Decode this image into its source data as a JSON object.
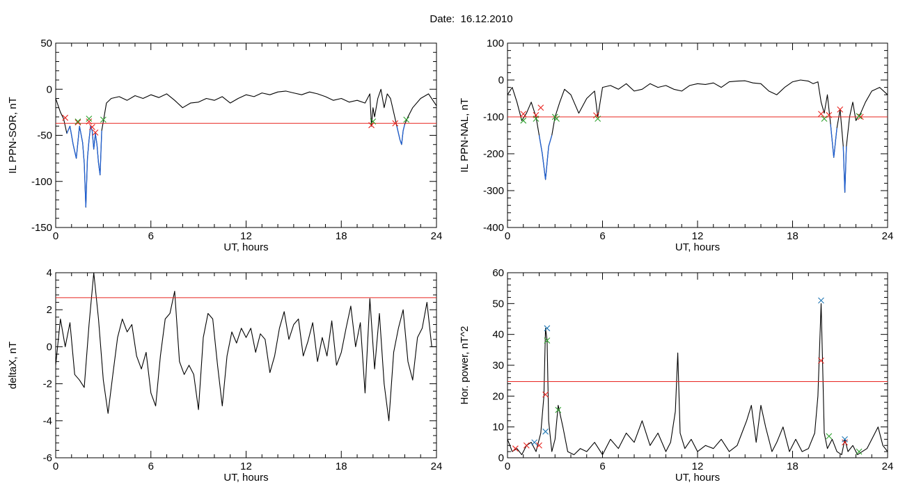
{
  "page": {
    "title": "Date:  16.12.2010"
  },
  "colors": {
    "trace": "#000000",
    "highlight": "#1f5fd0",
    "threshold": "#e8231e",
    "marker_red": "#e8231e",
    "marker_green": "#2ca02c",
    "marker_blue": "#1f77b4"
  },
  "chart_data": [
    {
      "type": "line",
      "xlabel": "UT, hours",
      "ylabel": "IL PPN-SOR, nT",
      "xlim": [
        0,
        24
      ],
      "ylim": [
        -150,
        50
      ],
      "xticks": [
        0,
        6,
        12,
        18,
        24
      ],
      "yticks": [
        -150,
        -100,
        -50,
        0,
        50
      ],
      "threshold": -37,
      "series": [
        {
          "x": [
            0,
            0.3,
            0.5,
            0.7,
            0.9,
            1.1,
            1.3,
            1.5,
            1.7,
            1.8,
            1.9,
            2.0,
            2.1,
            2.2,
            2.3,
            2.4,
            2.5,
            2.6,
            2.7,
            2.8,
            2.9,
            3.0,
            3.2,
            3.5,
            4,
            4.5,
            5,
            5.5,
            6,
            6.5,
            7,
            7.5,
            8,
            8.5,
            9,
            9.5,
            10,
            10.5,
            11,
            11.5,
            12,
            12.5,
            13,
            13.5,
            14,
            14.5,
            15,
            15.5,
            16,
            16.5,
            17,
            17.5,
            18,
            18.5,
            19,
            19.5,
            19.8,
            19.9,
            20.0,
            20.1,
            20.3,
            20.5,
            20.7,
            20.9,
            21.1,
            21.3,
            21.5,
            21.7,
            21.8,
            21.9,
            22.0,
            22.2,
            22.5,
            23,
            23.5,
            24
          ],
          "y": [
            -10,
            -25,
            -32,
            -48,
            -40,
            -60,
            -75,
            -40,
            -58,
            -80,
            -128,
            -75,
            -55,
            -40,
            -45,
            -65,
            -48,
            -60,
            -80,
            -93,
            -45,
            -35,
            -15,
            -10,
            -8,
            -12,
            -7,
            -10,
            -6,
            -9,
            -5,
            -12,
            -20,
            -15,
            -14,
            -10,
            -12,
            -8,
            -15,
            -10,
            -6,
            -8,
            -4,
            -6,
            -3,
            -2,
            -4,
            -6,
            -3,
            -5,
            -8,
            -12,
            -10,
            -14,
            -12,
            -15,
            -5,
            -40,
            -20,
            -30,
            -10,
            0,
            -20,
            -5,
            -10,
            -25,
            -40,
            -55,
            -60,
            -45,
            -38,
            -30,
            -20,
            -10,
            -5,
            -18
          ]
        }
      ]
    },
    {
      "type": "line",
      "xlabel": "UT, hours",
      "ylabel": "IL PPN-NAL, nT",
      "xlim": [
        0,
        24
      ],
      "ylim": [
        -400,
        100
      ],
      "xticks": [
        0,
        6,
        12,
        18,
        24
      ],
      "yticks": [
        -400,
        -300,
        -200,
        -100,
        0,
        100
      ],
      "threshold": -100,
      "series": [
        {
          "x": [
            0,
            0.3,
            0.6,
            0.9,
            1.2,
            1.5,
            1.8,
            2.0,
            2.2,
            2.4,
            2.6,
            2.8,
            3.0,
            3.3,
            3.6,
            4.0,
            4.5,
            5.0,
            5.5,
            5.7,
            6.0,
            6.5,
            7,
            7.5,
            8,
            8.5,
            9,
            9.5,
            10,
            10.5,
            11,
            11.5,
            12,
            12.5,
            13,
            13.5,
            14,
            14.5,
            15,
            15.5,
            16,
            16.5,
            17,
            17.5,
            18,
            18.5,
            19,
            19.3,
            19.6,
            19.8,
            20.0,
            20.2,
            20.4,
            20.6,
            20.8,
            21.0,
            21.2,
            21.3,
            21.4,
            21.6,
            21.8,
            22.0,
            22.3,
            22.6,
            23,
            23.5,
            24
          ],
          "y": [
            -40,
            -20,
            -60,
            -110,
            -90,
            -60,
            -100,
            -150,
            -200,
            -270,
            -180,
            -150,
            -100,
            -60,
            -25,
            -40,
            -90,
            -50,
            -30,
            -100,
            -20,
            -15,
            -25,
            -10,
            -30,
            -25,
            -10,
            -20,
            -15,
            -25,
            -30,
            -15,
            -10,
            -12,
            -8,
            -20,
            -5,
            -3,
            -2,
            -8,
            -10,
            -30,
            -40,
            -20,
            -5,
            0,
            -3,
            -10,
            -5,
            -60,
            -90,
            -40,
            -120,
            -210,
            -130,
            -80,
            -180,
            -305,
            -180,
            -100,
            -60,
            -110,
            -90,
            -60,
            -30,
            -20,
            -40
          ]
        }
      ]
    },
    {
      "type": "line",
      "xlabel": "UT, hours",
      "ylabel": "deltaX, nT",
      "xlim": [
        0,
        24
      ],
      "ylim": [
        -6,
        4
      ],
      "xticks": [
        0,
        6,
        12,
        18,
        24
      ],
      "yticks": [
        -6,
        -4,
        -2,
        0,
        2,
        4
      ],
      "threshold": 2.65,
      "series": [
        {
          "x": [
            0,
            0.3,
            0.6,
            0.9,
            1.2,
            1.5,
            1.8,
            2.1,
            2.4,
            2.7,
            3.0,
            3.3,
            3.6,
            3.9,
            4.2,
            4.5,
            4.8,
            5.1,
            5.4,
            5.7,
            6.0,
            6.3,
            6.6,
            6.9,
            7.2,
            7.5,
            7.8,
            8.1,
            8.4,
            8.7,
            9.0,
            9.3,
            9.6,
            9.9,
            10.2,
            10.5,
            10.8,
            11.1,
            11.4,
            11.7,
            12.0,
            12.3,
            12.6,
            12.9,
            13.2,
            13.5,
            13.8,
            14.1,
            14.4,
            14.7,
            15.0,
            15.3,
            15.6,
            15.9,
            16.2,
            16.5,
            16.8,
            17.1,
            17.4,
            17.7,
            18.0,
            18.3,
            18.6,
            18.9,
            19.2,
            19.5,
            19.8,
            20.1,
            20.4,
            20.7,
            21.0,
            21.3,
            21.6,
            21.9,
            22.2,
            22.5,
            22.8,
            23.1,
            23.4,
            23.7,
            24
          ],
          "y": [
            -1,
            1.5,
            0,
            1.3,
            -1.5,
            -1.8,
            -2.2,
            1.2,
            4,
            1.5,
            -1.8,
            -3.6,
            -1.5,
            0.5,
            1.5,
            0.8,
            1.2,
            -0.5,
            -1.2,
            -0.3,
            -2.5,
            -3.2,
            -0.5,
            1.5,
            1.8,
            3,
            -0.8,
            -1.5,
            -1,
            -1.5,
            -3.4,
            0.5,
            1.8,
            1.5,
            -1,
            -3.2,
            -0.5,
            0.8,
            0.2,
            1,
            0.5,
            1,
            -0.3,
            0.7,
            0.4,
            -1.4,
            -0.5,
            1,
            1.9,
            0.4,
            1.2,
            1.5,
            -0.5,
            0.3,
            1.3,
            -0.8,
            0.5,
            -0.5,
            1.4,
            -1,
            -0.3,
            1,
            2.2,
            0,
            1.3,
            -2.5,
            2.6,
            -1.2,
            1.8,
            -2,
            -4,
            -0.3,
            1,
            2,
            -0.8,
            -1.8,
            0.5,
            1,
            2.4,
            0,
            0
          ]
        }
      ]
    },
    {
      "type": "line",
      "xlabel": "UT, hours",
      "ylabel": "Hor. power, nT^2",
      "xlim": [
        0,
        24
      ],
      "ylim": [
        0,
        60
      ],
      "xticks": [
        0,
        6,
        12,
        18,
        24
      ],
      "yticks": [
        0,
        10,
        20,
        30,
        40,
        50,
        60
      ],
      "threshold": 24.7,
      "series": [
        {
          "x": [
            0,
            0.3,
            0.6,
            0.9,
            1.2,
            1.5,
            1.8,
            2.1,
            2.3,
            2.4,
            2.5,
            2.6,
            2.8,
            3.0,
            3.2,
            3.5,
            3.8,
            4.2,
            4.6,
            5.0,
            5.5,
            6.0,
            6.5,
            7.0,
            7.5,
            8.0,
            8.5,
            9.0,
            9.5,
            10.0,
            10.3,
            10.6,
            10.75,
            10.9,
            11.2,
            11.6,
            12.0,
            12.5,
            13.0,
            13.5,
            14.0,
            14.5,
            14.8,
            15.1,
            15.4,
            15.7,
            16.0,
            16.3,
            16.7,
            17.0,
            17.4,
            17.8,
            18.2,
            18.6,
            19.0,
            19.4,
            19.6,
            19.8,
            19.9,
            20.0,
            20.2,
            20.5,
            20.8,
            21.1,
            21.3,
            21.5,
            21.8,
            22.1,
            22.4,
            22.7,
            23.0,
            23.4,
            23.7,
            24
          ],
          "y": [
            6,
            2,
            3,
            1,
            4,
            5,
            2,
            8,
            20,
            42,
            38,
            12,
            2,
            6,
            17,
            10,
            2,
            1,
            3,
            2,
            5,
            1,
            6,
            3,
            8,
            5,
            12,
            4,
            8,
            2,
            5,
            15,
            34,
            8,
            3,
            6,
            2,
            4,
            3,
            6,
            2,
            4,
            8,
            12,
            17,
            5,
            17,
            10,
            2,
            5,
            10,
            2,
            6,
            2,
            3,
            8,
            20,
            50,
            30,
            8,
            3,
            6,
            2,
            1,
            6,
            2,
            4,
            1,
            2,
            3,
            6,
            10,
            4,
            2
          ]
        }
      ]
    }
  ],
  "markers": {
    "note": "",
    "panels": [
      {
        "red": [
          [
            0.6,
            -31
          ],
          [
            1.4,
            -36
          ],
          [
            2.1,
            -35
          ],
          [
            2.3,
            -41
          ],
          [
            2.5,
            -47
          ],
          [
            19.9,
            -39
          ],
          [
            21.4,
            -37
          ]
        ],
        "green": [
          [
            1.4,
            -35
          ],
          [
            2.1,
            -32
          ],
          [
            3.0,
            -33
          ],
          [
            20.0,
            -35
          ],
          [
            22.1,
            -33
          ]
        ]
      },
      {
        "red": [
          [
            1.0,
            -92
          ],
          [
            1.8,
            -95
          ],
          [
            2.1,
            -75
          ],
          [
            5.6,
            -96
          ],
          [
            19.8,
            -92
          ],
          [
            20.3,
            -95
          ],
          [
            21.0,
            -80
          ],
          [
            22.3,
            -100
          ]
        ],
        "green": [
          [
            1.0,
            -110
          ],
          [
            1.8,
            -105
          ],
          [
            3.0,
            -100
          ],
          [
            3.1,
            -105
          ],
          [
            5.7,
            -105
          ],
          [
            20.0,
            -105
          ],
          [
            22.2,
            -98
          ]
        ]
      },
      {
        "red": [],
        "green": []
      },
      {
        "red": [
          [
            0.5,
            3
          ],
          [
            1.2,
            4
          ],
          [
            2.0,
            4
          ],
          [
            2.4,
            20.5
          ],
          [
            19.8,
            31.5
          ],
          [
            21.3,
            5
          ]
        ],
        "green": [
          [
            2.5,
            38
          ],
          [
            3.2,
            15.5
          ],
          [
            20.3,
            7
          ],
          [
            22.2,
            2
          ]
        ],
        "blue": [
          [
            1.7,
            5
          ],
          [
            2.4,
            8.5
          ],
          [
            2.5,
            42
          ],
          [
            19.8,
            51
          ],
          [
            21.3,
            6
          ]
        ]
      }
    ]
  }
}
